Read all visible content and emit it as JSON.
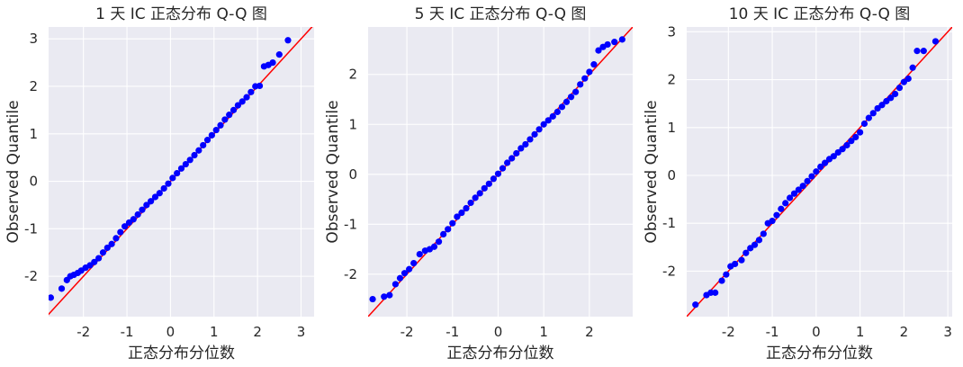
{
  "chart_data": [
    {
      "type": "scatter",
      "title": "1 天 IC 正态分布 Q-Q 图",
      "xlabel": "正态分布分位数",
      "ylabel": "Observed Quantile",
      "xlim": [
        -2.8,
        3.3
      ],
      "ylim": [
        -2.85,
        3.25
      ],
      "xticks": [
        -2,
        -1,
        0,
        1,
        2,
        3
      ],
      "yticks": [
        -2,
        -1,
        0,
        1,
        2,
        3
      ],
      "reference_line": {
        "slope": 1,
        "intercept": 0,
        "color": "#ff0000"
      },
      "point_color": "#0000ff",
      "points": [
        [
          -2.75,
          -2.45
        ],
        [
          -2.5,
          -2.26
        ],
        [
          -2.38,
          -2.08
        ],
        [
          -2.3,
          -2.0
        ],
        [
          -2.22,
          -1.97
        ],
        [
          -2.13,
          -1.93
        ],
        [
          -2.05,
          -1.88
        ],
        [
          -1.95,
          -1.82
        ],
        [
          -1.85,
          -1.77
        ],
        [
          -1.75,
          -1.7
        ],
        [
          -1.65,
          -1.62
        ],
        [
          -1.55,
          -1.5
        ],
        [
          -1.45,
          -1.4
        ],
        [
          -1.35,
          -1.32
        ],
        [
          -1.25,
          -1.2
        ],
        [
          -1.15,
          -1.07
        ],
        [
          -1.05,
          -0.95
        ],
        [
          -0.95,
          -0.87
        ],
        [
          -0.85,
          -0.8
        ],
        [
          -0.75,
          -0.7
        ],
        [
          -0.65,
          -0.6
        ],
        [
          -0.55,
          -0.5
        ],
        [
          -0.45,
          -0.42
        ],
        [
          -0.35,
          -0.33
        ],
        [
          -0.25,
          -0.25
        ],
        [
          -0.15,
          -0.15
        ],
        [
          -0.05,
          -0.05
        ],
        [
          0.05,
          0.07
        ],
        [
          0.15,
          0.17
        ],
        [
          0.25,
          0.27
        ],
        [
          0.35,
          0.36
        ],
        [
          0.45,
          0.45
        ],
        [
          0.55,
          0.55
        ],
        [
          0.65,
          0.65
        ],
        [
          0.75,
          0.76
        ],
        [
          0.85,
          0.87
        ],
        [
          0.95,
          0.97
        ],
        [
          1.05,
          1.08
        ],
        [
          1.15,
          1.18
        ],
        [
          1.25,
          1.3
        ],
        [
          1.35,
          1.4
        ],
        [
          1.45,
          1.5
        ],
        [
          1.55,
          1.6
        ],
        [
          1.65,
          1.68
        ],
        [
          1.75,
          1.77
        ],
        [
          1.85,
          1.88
        ],
        [
          1.95,
          2.0
        ],
        [
          2.05,
          2.01
        ],
        [
          2.15,
          2.42
        ],
        [
          2.25,
          2.45
        ],
        [
          2.35,
          2.5
        ],
        [
          2.5,
          2.67
        ],
        [
          2.7,
          2.97
        ]
      ]
    },
    {
      "type": "scatter",
      "title": "5 天 IC 正态分布 Q-Q 图",
      "xlabel": "正态分布分位数",
      "ylabel": "Observed Quantile",
      "xlim": [
        -2.85,
        2.95
      ],
      "ylim": [
        -2.85,
        2.95
      ],
      "xticks": [
        -2,
        -1,
        0,
        1,
        2
      ],
      "yticks": [
        -2,
        -1,
        0,
        1,
        2
      ],
      "reference_line": {
        "slope": 1,
        "intercept": 0,
        "color": "#ff0000"
      },
      "point_color": "#0000ff",
      "points": [
        [
          -2.75,
          -2.5
        ],
        [
          -2.5,
          -2.45
        ],
        [
          -2.38,
          -2.42
        ],
        [
          -2.25,
          -2.2
        ],
        [
          -2.15,
          -2.08
        ],
        [
          -2.05,
          -1.98
        ],
        [
          -1.95,
          -1.9
        ],
        [
          -1.85,
          -1.78
        ],
        [
          -1.72,
          -1.6
        ],
        [
          -1.6,
          -1.53
        ],
        [
          -1.5,
          -1.5
        ],
        [
          -1.4,
          -1.45
        ],
        [
          -1.3,
          -1.35
        ],
        [
          -1.2,
          -1.2
        ],
        [
          -1.1,
          -1.1
        ],
        [
          -1.0,
          -0.98
        ],
        [
          -0.9,
          -0.85
        ],
        [
          -0.8,
          -0.77
        ],
        [
          -0.7,
          -0.68
        ],
        [
          -0.6,
          -0.57
        ],
        [
          -0.5,
          -0.47
        ],
        [
          -0.4,
          -0.38
        ],
        [
          -0.3,
          -0.28
        ],
        [
          -0.2,
          -0.19
        ],
        [
          -0.1,
          -0.09
        ],
        [
          0.0,
          0.01
        ],
        [
          0.1,
          0.12
        ],
        [
          0.2,
          0.23
        ],
        [
          0.3,
          0.32
        ],
        [
          0.4,
          0.42
        ],
        [
          0.5,
          0.52
        ],
        [
          0.6,
          0.6
        ],
        [
          0.7,
          0.7
        ],
        [
          0.8,
          0.8
        ],
        [
          0.9,
          0.9
        ],
        [
          1.0,
          1.0
        ],
        [
          1.1,
          1.08
        ],
        [
          1.2,
          1.16
        ],
        [
          1.3,
          1.25
        ],
        [
          1.4,
          1.35
        ],
        [
          1.5,
          1.45
        ],
        [
          1.6,
          1.55
        ],
        [
          1.7,
          1.65
        ],
        [
          1.8,
          1.8
        ],
        [
          1.9,
          1.92
        ],
        [
          2.0,
          2.05
        ],
        [
          2.1,
          2.2
        ],
        [
          2.2,
          2.48
        ],
        [
          2.3,
          2.55
        ],
        [
          2.4,
          2.6
        ],
        [
          2.55,
          2.65
        ],
        [
          2.72,
          2.7
        ]
      ]
    },
    {
      "type": "scatter",
      "title": "10 天 IC 正态分布 Q-Q 图",
      "xlabel": "正态分布分位数",
      "ylabel": "Observed Quantile",
      "xlim": [
        -2.95,
        3.1
      ],
      "ylim": [
        -2.95,
        3.1
      ],
      "xticks": [
        -2,
        -1,
        0,
        1,
        2,
        3
      ],
      "yticks": [
        -2,
        -1,
        0,
        1,
        2,
        3
      ],
      "reference_line": {
        "slope": 1,
        "intercept": 0,
        "color": "#ff0000"
      },
      "point_color": "#0000ff",
      "points": [
        [
          -2.75,
          -2.7
        ],
        [
          -2.5,
          -2.5
        ],
        [
          -2.4,
          -2.45
        ],
        [
          -2.3,
          -2.45
        ],
        [
          -2.15,
          -2.2
        ],
        [
          -2.05,
          -2.07
        ],
        [
          -1.95,
          -1.9
        ],
        [
          -1.85,
          -1.85
        ],
        [
          -1.7,
          -1.77
        ],
        [
          -1.6,
          -1.62
        ],
        [
          -1.5,
          -1.52
        ],
        [
          -1.4,
          -1.45
        ],
        [
          -1.3,
          -1.35
        ],
        [
          -1.2,
          -1.22
        ],
        [
          -1.1,
          -1.0
        ],
        [
          -1.0,
          -0.95
        ],
        [
          -0.9,
          -0.83
        ],
        [
          -0.8,
          -0.7
        ],
        [
          -0.7,
          -0.58
        ],
        [
          -0.6,
          -0.47
        ],
        [
          -0.5,
          -0.38
        ],
        [
          -0.4,
          -0.3
        ],
        [
          -0.3,
          -0.22
        ],
        [
          -0.2,
          -0.12
        ],
        [
          -0.1,
          -0.02
        ],
        [
          0.0,
          0.08
        ],
        [
          0.1,
          0.18
        ],
        [
          0.2,
          0.26
        ],
        [
          0.3,
          0.34
        ],
        [
          0.4,
          0.4
        ],
        [
          0.5,
          0.48
        ],
        [
          0.6,
          0.55
        ],
        [
          0.7,
          0.63
        ],
        [
          0.8,
          0.72
        ],
        [
          0.9,
          0.8
        ],
        [
          1.0,
          0.9
        ],
        [
          1.1,
          1.08
        ],
        [
          1.2,
          1.2
        ],
        [
          1.3,
          1.3
        ],
        [
          1.4,
          1.4
        ],
        [
          1.5,
          1.47
        ],
        [
          1.6,
          1.55
        ],
        [
          1.7,
          1.62
        ],
        [
          1.8,
          1.7
        ],
        [
          1.9,
          1.83
        ],
        [
          2.0,
          1.95
        ],
        [
          2.1,
          2.02
        ],
        [
          2.2,
          2.25
        ],
        [
          2.3,
          2.6
        ],
        [
          2.45,
          2.6
        ],
        [
          2.72,
          2.8
        ]
      ]
    }
  ]
}
